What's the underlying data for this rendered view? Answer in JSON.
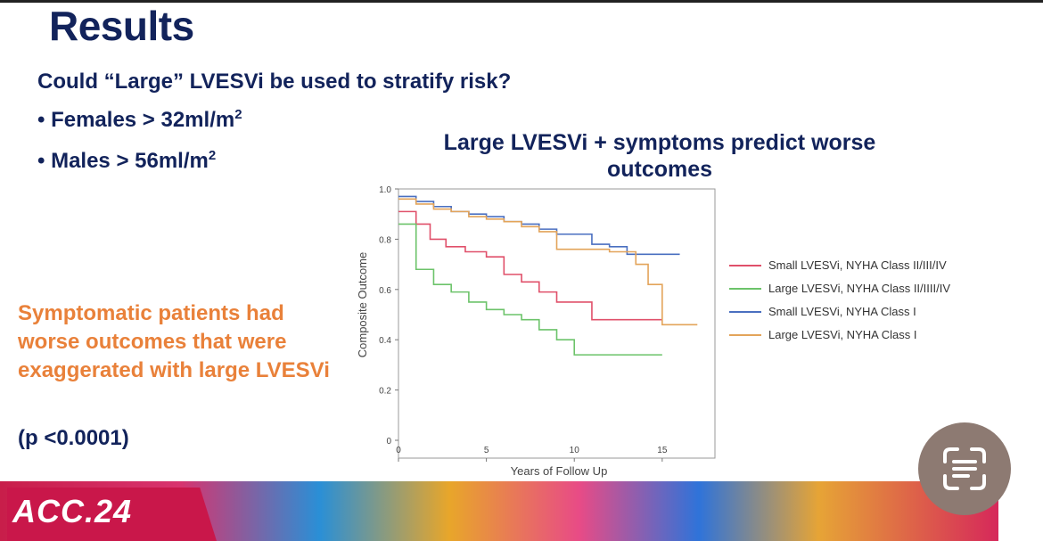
{
  "slide": {
    "title": "Results",
    "question": "Could “Large” LVESVi be used to stratify risk?",
    "bullets": [
      {
        "text": "Females > 32ml/m",
        "sup": "2"
      },
      {
        "text": "Males > 56ml/m",
        "sup": "2"
      }
    ],
    "chart_title_line1": "Large LVESVi + symptoms predict worse",
    "chart_title_line2": "outcomes",
    "orange_text": "Symptomatic patients had worse outcomes that were exaggerated with large LVESVi",
    "p_value": "(p <0.0001)",
    "footer_logo": "ACC.24"
  },
  "colors": {
    "navy": "#12235b",
    "orange": "#e9813a",
    "red": "#e0506a",
    "green": "#6cc36a",
    "blue": "#4a6fc0",
    "tan": "#e3a45a"
  },
  "icons": {
    "scan": "text-scan-icon"
  },
  "chart_data": {
    "type": "line",
    "step": true,
    "xlabel": "Years of Follow Up",
    "ylabel": "Composite Outcome",
    "xlim": [
      0,
      18
    ],
    "ylim": [
      0,
      1.0
    ],
    "x_ticks": [
      0,
      5,
      10,
      15
    ],
    "y_ticks": [
      0,
      0.2,
      0.4,
      0.6,
      0.8,
      1.0
    ],
    "y_tick_labels": [
      "0",
      "0.2",
      "0.4",
      "0.6",
      "0.8",
      "1.0"
    ],
    "legend_position": "right",
    "series": [
      {
        "name": "Small LVESVi, NYHA Class II/III/IV",
        "color": "#e0506a",
        "points": [
          [
            0,
            0.91
          ],
          [
            1,
            0.86
          ],
          [
            1.8,
            0.8
          ],
          [
            2.7,
            0.77
          ],
          [
            3.8,
            0.75
          ],
          [
            5,
            0.73
          ],
          [
            6,
            0.66
          ],
          [
            7,
            0.63
          ],
          [
            8,
            0.59
          ],
          [
            9,
            0.55
          ],
          [
            11,
            0.48
          ],
          [
            15,
            0.48
          ]
        ]
      },
      {
        "name": "Large LVESVi, NYHA Class II/IIII/IV",
        "color": "#6cc36a",
        "points": [
          [
            0,
            0.86
          ],
          [
            1,
            0.68
          ],
          [
            2,
            0.62
          ],
          [
            3,
            0.59
          ],
          [
            4,
            0.55
          ],
          [
            5,
            0.52
          ],
          [
            6,
            0.5
          ],
          [
            7,
            0.48
          ],
          [
            8,
            0.44
          ],
          [
            9,
            0.4
          ],
          [
            10,
            0.34
          ],
          [
            15,
            0.34
          ]
        ]
      },
      {
        "name": "Small LVESVi, NYHA Class I",
        "color": "#4a6fc0",
        "points": [
          [
            0,
            0.97
          ],
          [
            1,
            0.95
          ],
          [
            2,
            0.93
          ],
          [
            3,
            0.91
          ],
          [
            4,
            0.9
          ],
          [
            5,
            0.89
          ],
          [
            6,
            0.87
          ],
          [
            7,
            0.86
          ],
          [
            8,
            0.84
          ],
          [
            9,
            0.82
          ],
          [
            11,
            0.78
          ],
          [
            12,
            0.77
          ],
          [
            13,
            0.74
          ],
          [
            14,
            0.74
          ],
          [
            16,
            0.74
          ]
        ]
      },
      {
        "name": "Large LVESVi, NYHA Class I",
        "color": "#e3a45a",
        "points": [
          [
            0,
            0.96
          ],
          [
            1,
            0.94
          ],
          [
            2,
            0.92
          ],
          [
            3,
            0.91
          ],
          [
            4,
            0.89
          ],
          [
            5,
            0.88
          ],
          [
            6,
            0.87
          ],
          [
            7,
            0.85
          ],
          [
            8,
            0.83
          ],
          [
            9,
            0.76
          ],
          [
            12,
            0.75
          ],
          [
            13,
            0.75
          ],
          [
            13.5,
            0.7
          ],
          [
            14.2,
            0.62
          ],
          [
            15,
            0.46
          ],
          [
            17,
            0.46
          ]
        ]
      }
    ]
  }
}
